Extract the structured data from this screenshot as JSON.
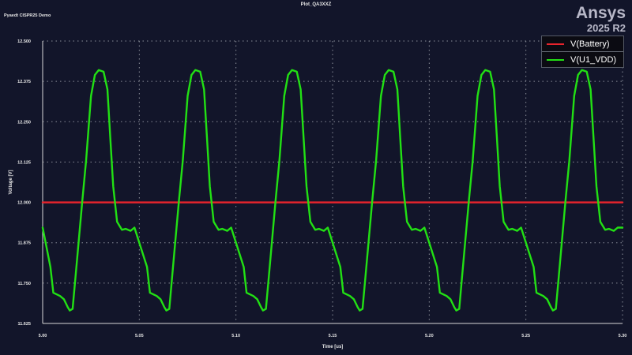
{
  "header": {
    "plot_title": "Plot_QA3XXZ",
    "project_label": "Pyaedt CISPR25 Demo",
    "brand_name": "Ansys",
    "brand_version": "2025 R2"
  },
  "colors": {
    "background": "#12152a",
    "grid": "#8a8e99",
    "battery": "#e8242c",
    "vdd": "#22e014"
  },
  "chart_data": {
    "type": "line",
    "title": "Plot_QA3XXZ",
    "xlabel": "Time [us]",
    "ylabel": "Voltage [V]",
    "xlim": [
      5.0,
      5.3
    ],
    "ylim": [
      11.625,
      12.5
    ],
    "x_ticks": [
      "5.00",
      "5.05",
      "5.10",
      "5.15",
      "5.20",
      "5.25",
      "5.30"
    ],
    "y_ticks": [
      "11.625",
      "11.750",
      "11.875",
      "12.000",
      "12.125",
      "12.250",
      "12.375",
      "12.500"
    ],
    "grid": true,
    "legend_position": "top-right",
    "series": [
      {
        "name": "V(Battery)",
        "color": "#e8242c",
        "x": [
          5.0,
          5.3
        ],
        "y": [
          12.0,
          12.0
        ]
      },
      {
        "name": "V(U1_VDD)",
        "color": "#22e014",
        "period": 0.05,
        "x": [
          5.0,
          5.004,
          5.0055,
          5.009,
          5.011,
          5.013,
          5.014,
          5.0155,
          5.017,
          5.0205,
          5.0225,
          5.025,
          5.027,
          5.029,
          5.0315,
          5.0335,
          5.035,
          5.0365,
          5.0385,
          5.041,
          5.043,
          5.0455,
          5.0475
        ],
        "y": [
          11.922,
          11.8,
          11.72,
          11.71,
          11.7,
          11.675,
          11.665,
          11.67,
          11.77,
          12.005,
          12.13,
          12.33,
          12.395,
          12.41,
          12.405,
          12.35,
          12.2,
          12.05,
          11.94,
          11.915,
          11.918,
          11.912,
          11.922
        ]
      }
    ]
  }
}
